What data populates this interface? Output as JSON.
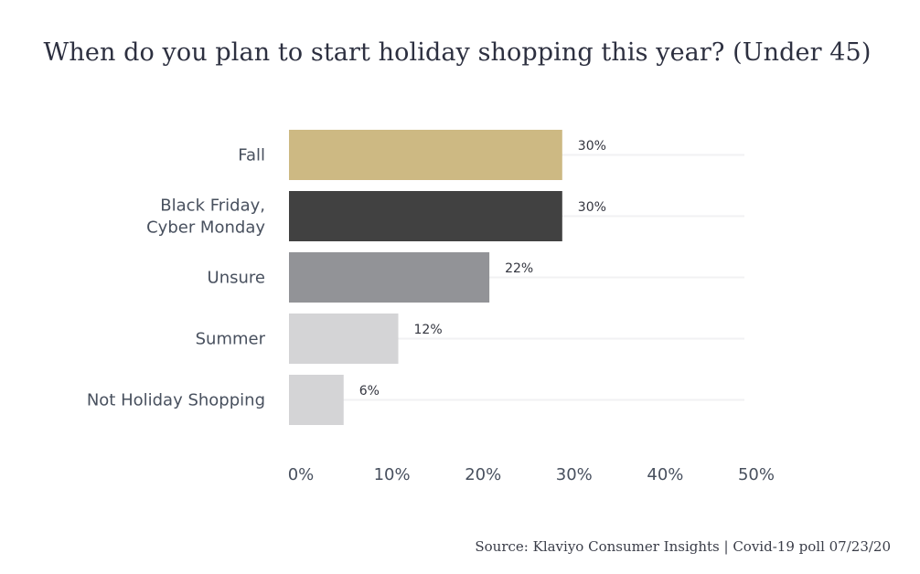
{
  "title": "When do you plan to start holiday shopping this year? (Under 45)",
  "source": "Source:  Klaviyo Consumer Insights | Covid-19 poll 07/23/20",
  "chart_data": {
    "type": "bar",
    "orientation": "horizontal",
    "title": "When do you plan to start holiday shopping this year? (Under 45)",
    "categories": [
      "Fall",
      "Black Friday, Cyber Monday",
      "Unsure",
      "Summer",
      "Not Holiday Shopping"
    ],
    "category_lines": [
      [
        "Fall"
      ],
      [
        "Black Friday,",
        "Cyber Monday"
      ],
      [
        "Unsure"
      ],
      [
        "Summer"
      ],
      [
        "Not Holiday Shopping"
      ]
    ],
    "values": [
      30,
      30,
      22,
      12,
      6
    ],
    "value_labels": [
      "30%",
      "30%",
      "22%",
      "12%",
      "6%"
    ],
    "bar_colors": [
      "#cdb983",
      "#414141",
      "#929397",
      "#d4d4d6",
      "#d4d4d6"
    ],
    "xlim": [
      0,
      50
    ],
    "xticks": [
      0,
      10,
      20,
      30,
      40,
      50
    ],
    "xtick_labels": [
      "0%",
      "10%",
      "20%",
      "30%",
      "40%",
      "50%"
    ],
    "grid": true,
    "legend": "none"
  }
}
